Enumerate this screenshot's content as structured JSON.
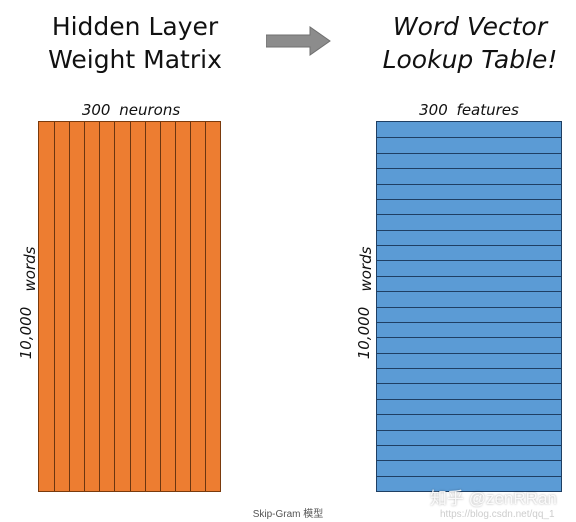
{
  "left": {
    "title_line1": "Hidden Layer",
    "title_line2": "Weight Matrix",
    "top_label": "300  neurons",
    "side_count": "10,000",
    "side_words": "words",
    "color": "#ed7d31",
    "columns": 12
  },
  "right": {
    "title_line1": "Word Vector",
    "title_line2": "Lookup Table!",
    "top_label": "300  features",
    "side_count": "10,000",
    "side_words": "words",
    "color": "#5b9bd5",
    "rows": 24
  },
  "arrow": {
    "icon": "right-arrow-icon",
    "color": "#8c8c8c"
  },
  "caption": "Skip-Gram 模型",
  "watermark": "知乎 @zenRRan",
  "url_watermark": "https://blog.csdn.net/qq_1"
}
